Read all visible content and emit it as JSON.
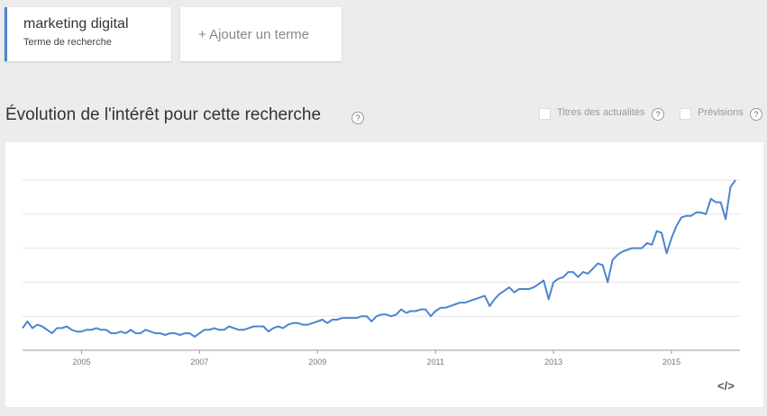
{
  "search_term": {
    "name": "marketing digital",
    "caption": "Terme de recherche"
  },
  "add_term": "+ Ajouter un terme",
  "section_title": "Évolution de l'intérêt pour cette recherche",
  "help_icon": "?",
  "options": [
    "Titres des actualités",
    "Prévisions"
  ],
  "embed_icon": "</>",
  "chart_data": {
    "type": "line",
    "x": [
      2004,
      2004.083,
      2004.167,
      2004.25,
      2004.333,
      2004.417,
      2004.5,
      2004.583,
      2004.667,
      2004.75,
      2004.833,
      2004.917,
      2005,
      2005.083,
      2005.167,
      2005.25,
      2005.333,
      2005.417,
      2005.5,
      2005.583,
      2005.667,
      2005.75,
      2005.833,
      2005.917,
      2006,
      2006.083,
      2006.167,
      2006.25,
      2006.333,
      2006.417,
      2006.5,
      2006.583,
      2006.667,
      2006.75,
      2006.833,
      2006.917,
      2007,
      2007.083,
      2007.167,
      2007.25,
      2007.333,
      2007.417,
      2007.5,
      2007.583,
      2007.667,
      2007.75,
      2007.833,
      2007.917,
      2008,
      2008.083,
      2008.167,
      2008.25,
      2008.333,
      2008.417,
      2008.5,
      2008.583,
      2008.667,
      2008.75,
      2008.833,
      2008.917,
      2009,
      2009.083,
      2009.167,
      2009.25,
      2009.333,
      2009.417,
      2009.5,
      2009.583,
      2009.667,
      2009.75,
      2009.833,
      2009.917,
      2010,
      2010.083,
      2010.167,
      2010.25,
      2010.333,
      2010.417,
      2010.5,
      2010.583,
      2010.667,
      2010.75,
      2010.833,
      2010.917,
      2011,
      2011.083,
      2011.167,
      2011.25,
      2011.333,
      2011.417,
      2011.5,
      2011.583,
      2011.667,
      2011.75,
      2011.833,
      2011.917,
      2012,
      2012.083,
      2012.167,
      2012.25,
      2012.333,
      2012.417,
      2012.5,
      2012.583,
      2012.667,
      2012.75,
      2012.833,
      2012.917,
      2013,
      2013.083,
      2013.167,
      2013.25,
      2013.333,
      2013.417,
      2013.5,
      2013.583,
      2013.667,
      2013.75,
      2013.833,
      2013.917,
      2014,
      2014.083,
      2014.167,
      2014.25,
      2014.333,
      2014.417,
      2014.5,
      2014.583,
      2014.667,
      2014.75,
      2014.833,
      2014.917,
      2015,
      2015.083,
      2015.167,
      2015.25,
      2015.333,
      2015.417,
      2015.5,
      2015.583,
      2015.667,
      2015.75,
      2015.833,
      2015.917,
      2016,
      2016.083
    ],
    "series": [
      {
        "color": "#4a86cf",
        "values": [
          13,
          17,
          13,
          15,
          14,
          12,
          10,
          13,
          13,
          14,
          12,
          11,
          11,
          12,
          12,
          13,
          12,
          12,
          10,
          10,
          11,
          10,
          12,
          10,
          10,
          12,
          11,
          10,
          10,
          9,
          10,
          10,
          9,
          10,
          10,
          8,
          10,
          12,
          12,
          13,
          12,
          12,
          14,
          13,
          12,
          12,
          13,
          14,
          14,
          14,
          11,
          13,
          14,
          13,
          15,
          16,
          16,
          15,
          15,
          16,
          17,
          18,
          16,
          18,
          18,
          19,
          19,
          19,
          19,
          20,
          20,
          17,
          20,
          21,
          21,
          20,
          21,
          24,
          22,
          23,
          23,
          24,
          24,
          20,
          23,
          25,
          25,
          26,
          27,
          28,
          28,
          29,
          30,
          31,
          32,
          26,
          30,
          33,
          35,
          37,
          34,
          36,
          36,
          36,
          37,
          39,
          41,
          30,
          40,
          42,
          43,
          46,
          46,
          43,
          46,
          45,
          48,
          51,
          50,
          40,
          53,
          56,
          58,
          59,
          60,
          60,
          60,
          63,
          62,
          70,
          69,
          57,
          66,
          73,
          78,
          79,
          79,
          81,
          81,
          80,
          89,
          87,
          87,
          77,
          96,
          100
        ]
      }
    ],
    "xlim": [
      2004,
      2016.16
    ],
    "xticks": [
      2005,
      2007,
      2009,
      2011,
      2013,
      2015
    ],
    "ylim": [
      0,
      100
    ],
    "ygrid": [
      20,
      40,
      60,
      80,
      100
    ]
  }
}
